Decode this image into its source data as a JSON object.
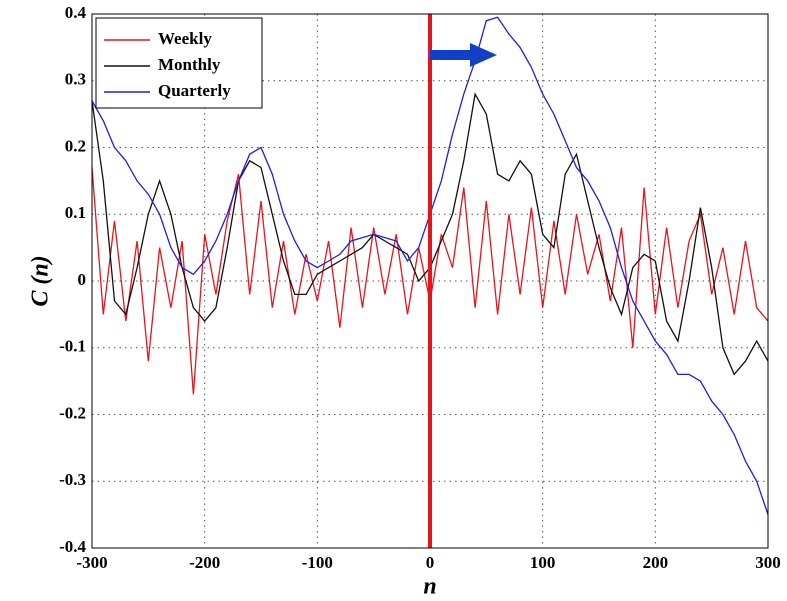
{
  "chart_data": {
    "type": "line",
    "xlabel": "n",
    "ylabel": "C (n)",
    "x": [
      -300,
      -290,
      -280,
      -270,
      -260,
      -250,
      -240,
      -230,
      -220,
      -210,
      -200,
      -190,
      -180,
      -170,
      -160,
      -150,
      -140,
      -130,
      -120,
      -110,
      -100,
      -90,
      -80,
      -70,
      -60,
      -50,
      -40,
      -30,
      -20,
      -10,
      0,
      10,
      20,
      30,
      40,
      50,
      60,
      70,
      80,
      90,
      100,
      110,
      120,
      130,
      140,
      150,
      160,
      170,
      180,
      190,
      200,
      210,
      220,
      230,
      240,
      250,
      260,
      270,
      280,
      290,
      300
    ],
    "series": [
      {
        "name": "Weekly",
        "color": "#e8141c",
        "values": [
          0.17,
          -0.05,
          0.09,
          -0.06,
          0.06,
          -0.12,
          0.05,
          -0.04,
          0.06,
          -0.17,
          0.07,
          -0.02,
          0.09,
          0.16,
          -0.02,
          0.12,
          -0.04,
          0.06,
          -0.05,
          0.04,
          -0.03,
          0.06,
          -0.07,
          0.08,
          -0.04,
          0.08,
          -0.02,
          0.07,
          -0.05,
          0.05,
          -0.03,
          0.07,
          0.02,
          0.14,
          -0.04,
          0.12,
          -0.05,
          0.1,
          -0.02,
          0.11,
          -0.04,
          0.09,
          -0.02,
          0.1,
          0.01,
          0.07,
          -0.03,
          0.08,
          -0.1,
          0.14,
          -0.05,
          0.08,
          -0.04,
          0.06,
          0.1,
          -0.02,
          0.05,
          -0.05,
          0.06,
          -0.04,
          -0.06
        ]
      },
      {
        "name": "Monthly",
        "color": "#111111",
        "values": [
          0.27,
          0.15,
          -0.03,
          -0.05,
          0.02,
          0.1,
          0.15,
          0.1,
          0.02,
          -0.04,
          -0.06,
          -0.04,
          0.05,
          0.15,
          0.18,
          0.17,
          0.1,
          0.03,
          -0.02,
          -0.02,
          0.01,
          0.02,
          0.03,
          0.04,
          0.05,
          0.07,
          0.06,
          0.05,
          0.04,
          0,
          0.02,
          0.06,
          0.1,
          0.18,
          0.28,
          0.25,
          0.16,
          0.15,
          0.18,
          0.16,
          0.07,
          0.05,
          0.16,
          0.19,
          0.12,
          0.05,
          -0.01,
          -0.05,
          0.02,
          0.04,
          0.03,
          -0.06,
          -0.09,
          0,
          0.11,
          0.02,
          -0.1,
          -0.14,
          -0.12,
          -0.09,
          -0.12
        ]
      },
      {
        "name": "Quarterly",
        "color": "#1f1fe0",
        "values": [
          0.27,
          0.24,
          0.2,
          0.18,
          0.15,
          0.13,
          0.1,
          0.05,
          0.02,
          0.01,
          0.03,
          0.06,
          0.1,
          0.15,
          0.19,
          0.2,
          0.16,
          0.1,
          0.06,
          0.03,
          0.02,
          0.03,
          0.04,
          0.06,
          0.065,
          0.07,
          0.065,
          0.06,
          0.03,
          0.05,
          0.1,
          0.15,
          0.22,
          0.28,
          0.33,
          0.39,
          0.395,
          0.37,
          0.35,
          0.32,
          0.28,
          0.25,
          0.21,
          0.17,
          0.15,
          0.12,
          0.08,
          0.02,
          -0.03,
          -0.06,
          -0.09,
          -0.11,
          -0.14,
          -0.14,
          -0.15,
          -0.18,
          -0.2,
          -0.23,
          -0.27,
          -0.3,
          -0.35
        ]
      }
    ],
    "vline": 0,
    "vline_color": "#e8141c",
    "xlim": [
      -300,
      300
    ],
    "xticks": [
      -300,
      -200,
      -100,
      0,
      100,
      200,
      300
    ],
    "ylim": [
      -0.4,
      0.4
    ],
    "yticks": [
      -0.4,
      -0.3,
      -0.2,
      -0.1,
      0,
      0.1,
      0.2,
      0.3,
      0.4
    ],
    "grid": true,
    "legend": "upper-left"
  }
}
